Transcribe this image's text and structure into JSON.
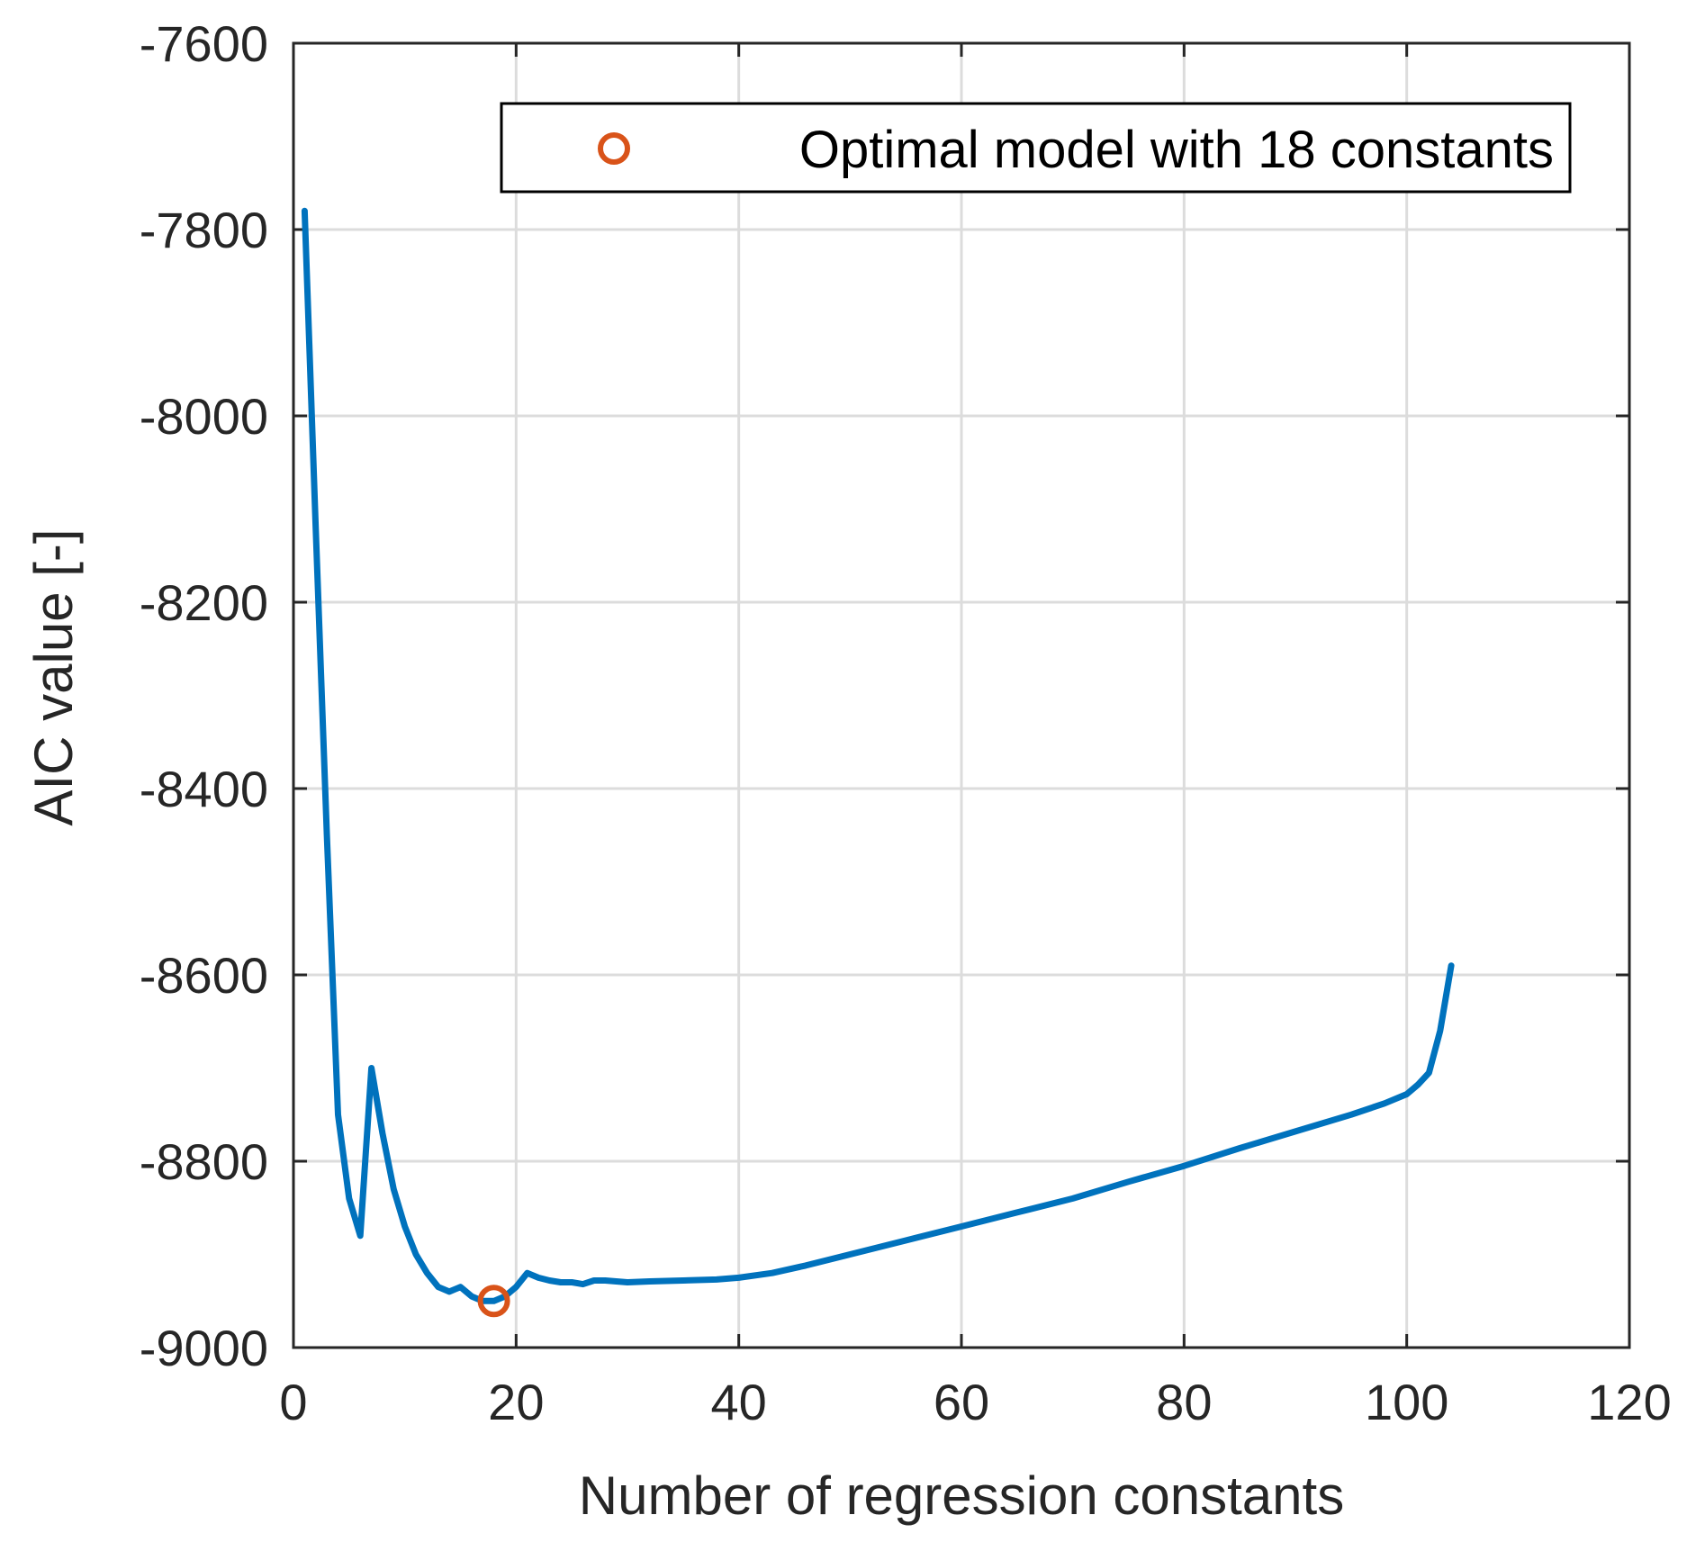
{
  "chart_data": {
    "type": "line",
    "xlabel": "Number of regression constants",
    "ylabel": "AIC value [-]",
    "xlim": [
      0,
      120
    ],
    "ylim": [
      -9000,
      -7600
    ],
    "xticks": [
      0,
      20,
      40,
      60,
      80,
      100,
      120
    ],
    "yticks": [
      -7600,
      -7800,
      -8000,
      -8200,
      -8400,
      -8600,
      -8800,
      -9000
    ],
    "grid": true,
    "legend_position": "top-right",
    "series": [
      {
        "name": "AIC",
        "color": "#0072BD",
        "x": [
          1,
          2,
          3,
          4,
          5,
          6,
          7,
          8,
          9,
          10,
          11,
          12,
          13,
          14,
          15,
          16,
          17,
          18,
          19,
          20,
          21,
          22,
          23,
          24,
          25,
          26,
          27,
          28,
          30,
          32,
          35,
          38,
          40,
          43,
          46,
          50,
          55,
          60,
          65,
          70,
          75,
          80,
          85,
          90,
          95,
          98,
          100,
          101,
          102,
          103,
          104
        ],
        "y": [
          -7780,
          -8120,
          -8450,
          -8750,
          -8840,
          -8880,
          -8700,
          -8770,
          -8830,
          -8870,
          -8900,
          -8920,
          -8935,
          -8940,
          -8935,
          -8945,
          -8950,
          -8950,
          -8945,
          -8935,
          -8920,
          -8925,
          -8928,
          -8930,
          -8930,
          -8932,
          -8928,
          -8928,
          -8930,
          -8929,
          -8928,
          -8927,
          -8925,
          -8920,
          -8912,
          -8900,
          -8885,
          -8870,
          -8855,
          -8840,
          -8822,
          -8805,
          -8786,
          -8768,
          -8750,
          -8738,
          -8728,
          -8718,
          -8705,
          -8660,
          -8590
        ]
      }
    ],
    "markers": [
      {
        "name": "Optimal model with 18 constants",
        "x": 18,
        "y": -8950,
        "color": "#D95319",
        "shape": "circle"
      }
    ],
    "legend": [
      {
        "label": "Optimal model with 18 constants",
        "marker": "circle",
        "color": "#D95319"
      }
    ]
  }
}
